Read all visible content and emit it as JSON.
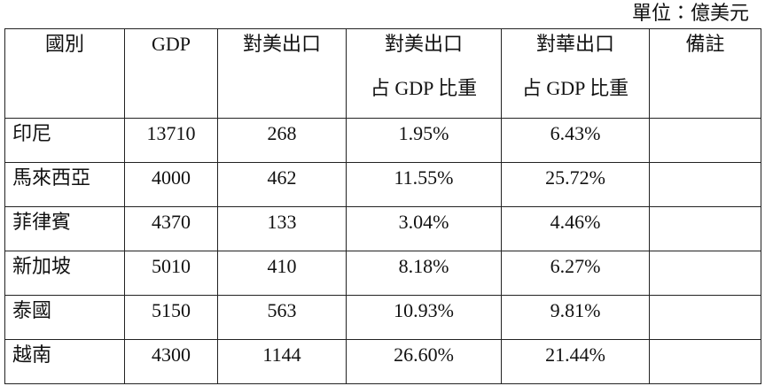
{
  "unit": "單位：億美元",
  "table": {
    "header": [
      [
        "國別"
      ],
      [
        "GDP"
      ],
      [
        "對美出口"
      ],
      [
        "對美出口",
        "占 GDP 比重"
      ],
      [
        "對華出口",
        "占 GDP 比重"
      ],
      [
        "備註"
      ]
    ],
    "rows": [
      [
        "印尼",
        13710,
        268,
        "1.95%",
        "6.43%"
      ],
      [
        "馬來西亞",
        4000,
        462,
        "11.55%",
        "25.72%"
      ],
      [
        "菲律賓",
        4370,
        133,
        "3.04%",
        "4.46%"
      ],
      [
        "新加坡",
        5010,
        410,
        "8.18%",
        "6.27%"
      ],
      [
        "泰國",
        5150,
        563,
        "10.93%",
        "9.81%"
      ],
      [
        "越南",
        4300,
        1144,
        "26.60%",
        "21.44%"
      ]
    ]
  }
}
